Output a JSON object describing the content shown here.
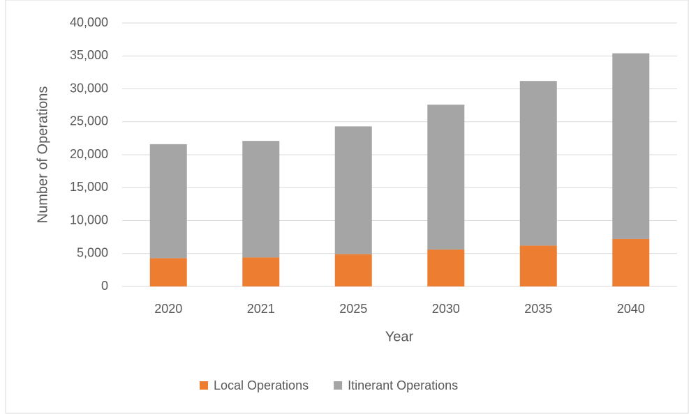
{
  "chart_data": {
    "type": "stacked_bar",
    "categories": [
      "2020",
      "2021",
      "2025",
      "2030",
      "2035",
      "2040"
    ],
    "series": [
      {
        "name": "Local Operations",
        "color": "#ed7d31",
        "values": [
          4300,
          4400,
          4900,
          5600,
          6200,
          7200
        ]
      },
      {
        "name": "Itinerant Operations",
        "color": "#a5a5a5",
        "values": [
          17300,
          17700,
          19400,
          22000,
          25000,
          28200
        ]
      }
    ],
    "x_label": "Year",
    "y_label": "Number of Operations",
    "ylim": [
      0,
      40000
    ],
    "yticks": [
      0,
      {
        "value": 5000,
        "label": "5,000"
      },
      {
        "value": 10000,
        "label": "10,000"
      },
      {
        "value": 15000,
        "label": "15,000"
      },
      {
        "value": 20000,
        "label": "20,000"
      },
      {
        "value": 25000,
        "label": "25,000"
      },
      {
        "value": 30000,
        "label": "30,000"
      },
      {
        "value": 35000,
        "label": "35,000"
      },
      {
        "value": 40000,
        "label": "40,000"
      }
    ],
    "grid": true,
    "legend": "bottom"
  }
}
